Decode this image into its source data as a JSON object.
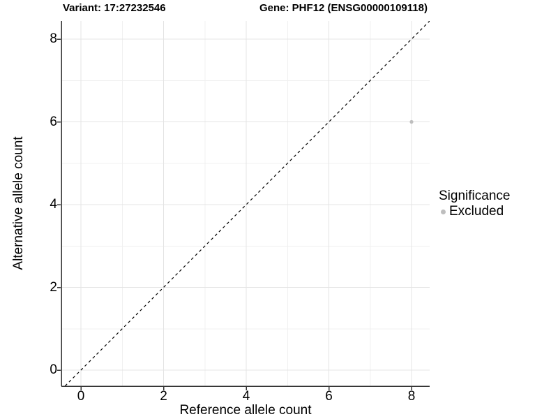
{
  "chart_data": {
    "type": "scatter",
    "title_left": "Variant: 17:27232546",
    "title_right": "Gene: PHF12 (ENSG00000109118)",
    "xlabel": "Reference allele count",
    "ylabel": "Alternative allele count",
    "x_ticks": [
      0,
      2,
      4,
      6,
      8
    ],
    "y_ticks": [
      0,
      2,
      4,
      6,
      8
    ],
    "xlim": [
      -0.47,
      8.44
    ],
    "ylim": [
      -0.39,
      8.44
    ],
    "grid": true,
    "minor_grid": true,
    "identity_line": {
      "type": "y=x",
      "style": "dashed",
      "color": "#000000"
    },
    "points": [
      {
        "x": 8,
        "y": 6,
        "series": "Excluded"
      }
    ],
    "series": [
      {
        "name": "Excluded",
        "color": "#bebebe"
      }
    ],
    "legend": {
      "title": "Significance",
      "position": "right",
      "items": [
        {
          "label": "Excluded",
          "color": "#bebebe"
        }
      ]
    },
    "style": {
      "background": "#ffffff",
      "point_color": "#bebebe",
      "grid_major_color": "#e4e4e4",
      "grid_minor_color": "#f0f0f0",
      "axis_color": "#333333",
      "text_color": "#000000"
    }
  }
}
